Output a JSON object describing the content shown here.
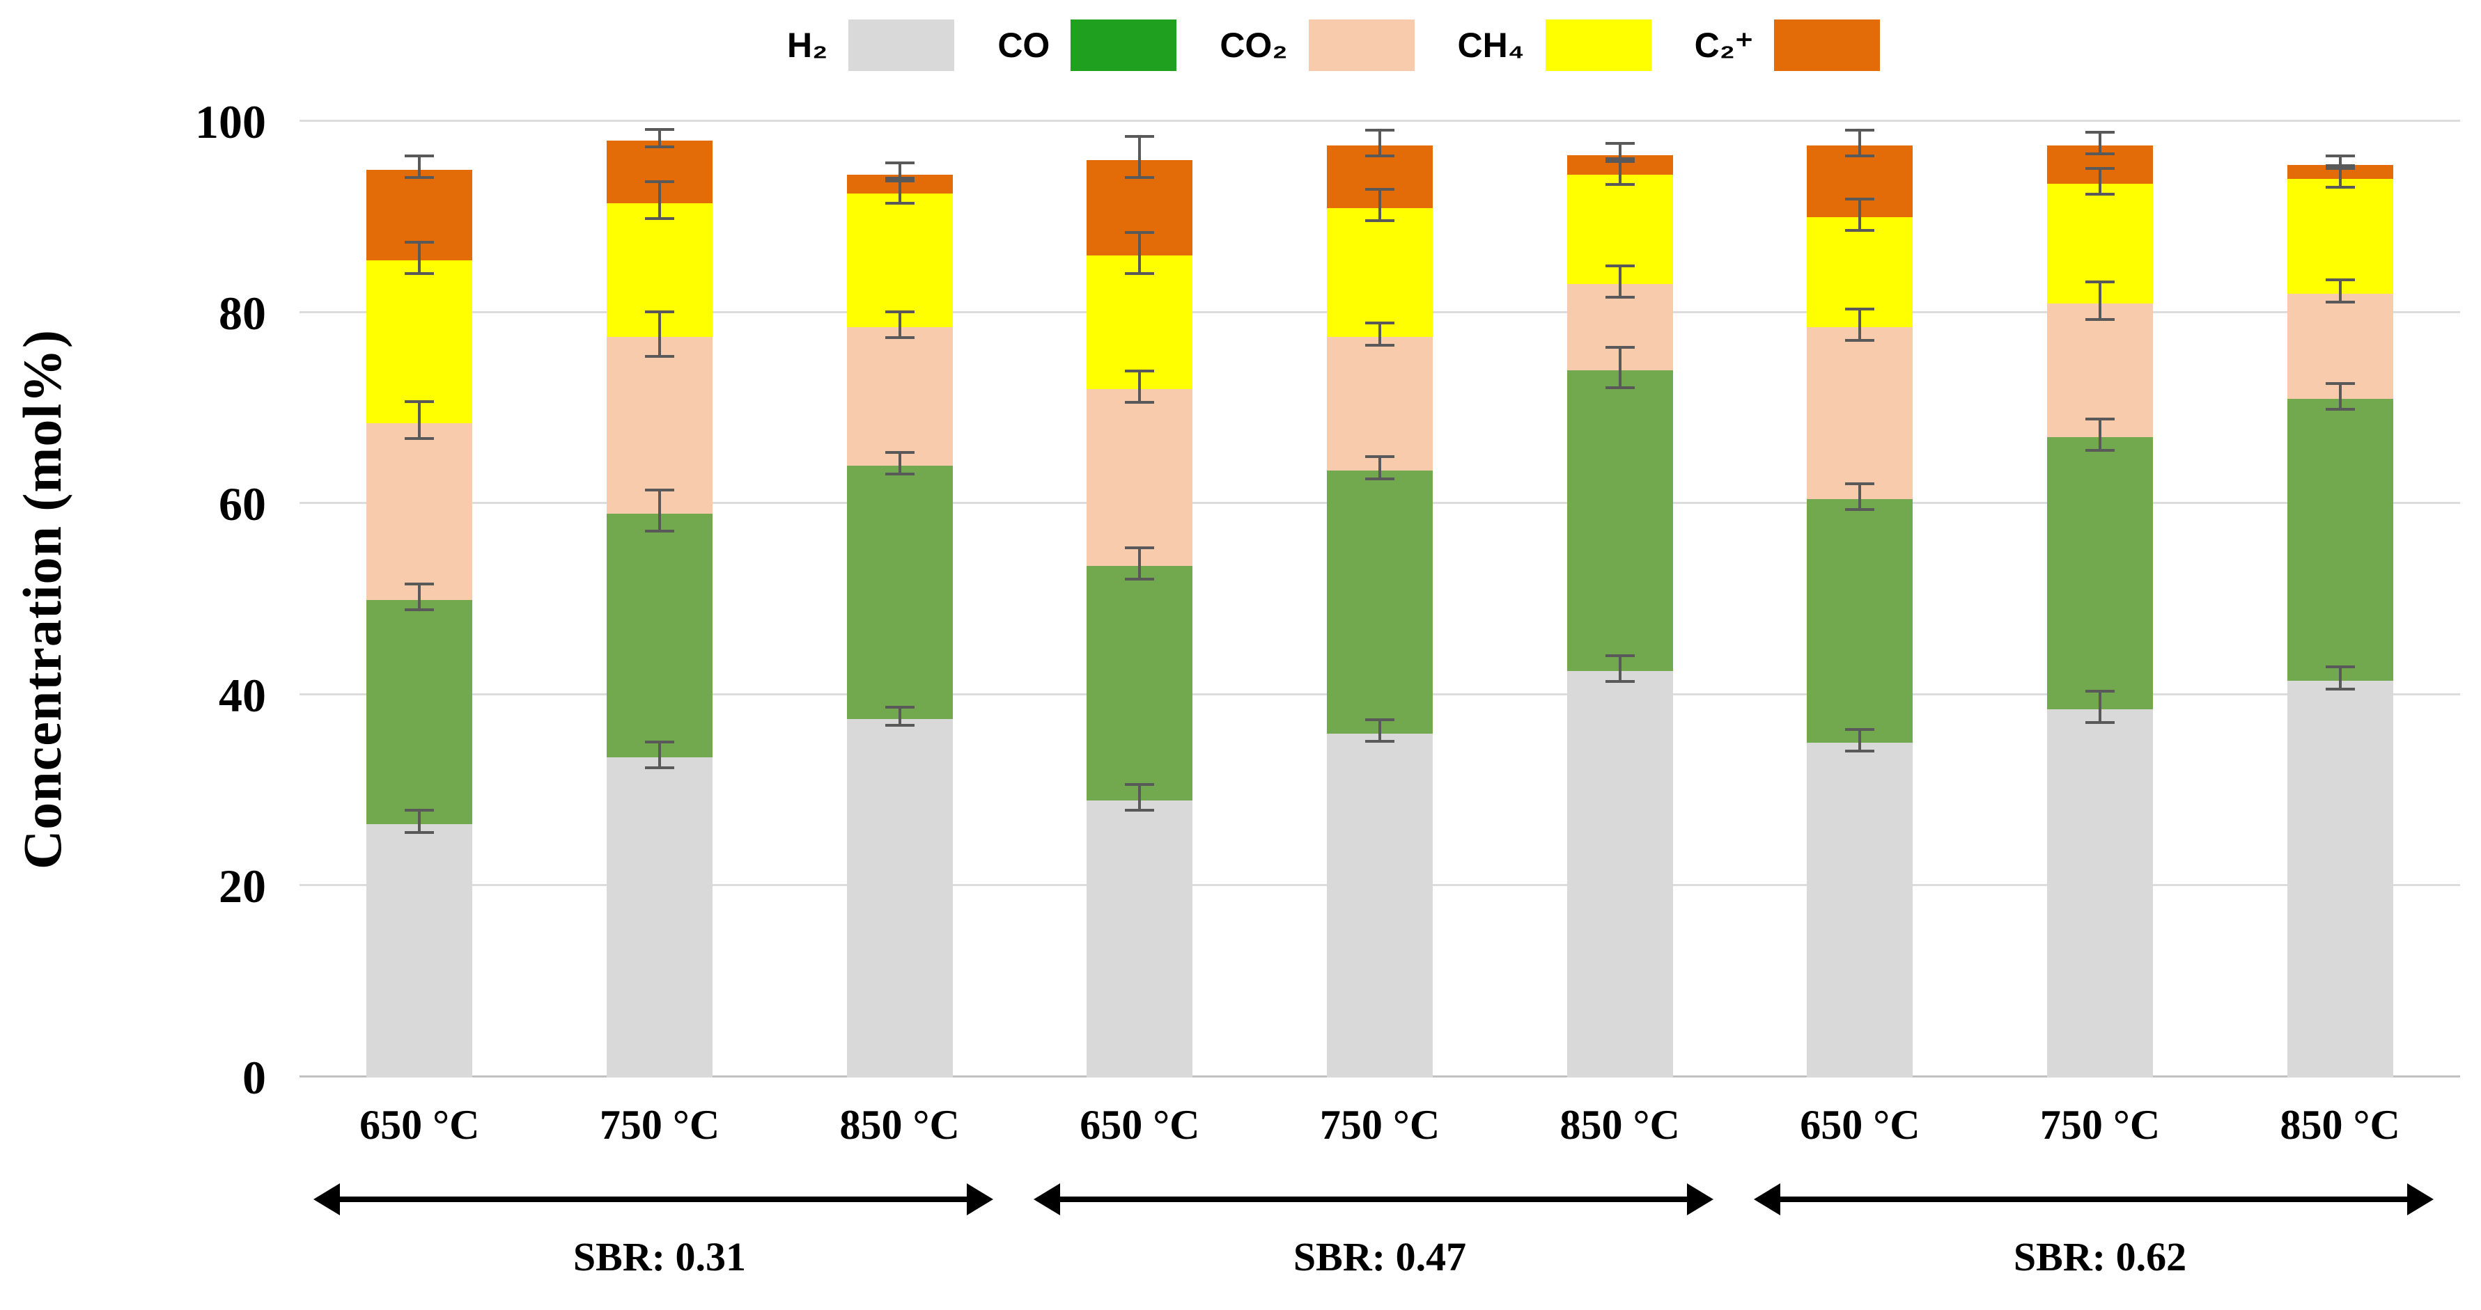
{
  "chart_data": {
    "type": "bar",
    "subtype": "stacked",
    "title": "",
    "ylabel": "Concentration (mol%)",
    "ylim": [
      0,
      100
    ],
    "yticks": [
      0,
      20,
      40,
      60,
      80,
      100
    ],
    "grid": "horizontal",
    "legend_position": "top",
    "categories": [
      "650 °C",
      "750 °C",
      "850 °C",
      "650 °C",
      "750 °C",
      "850 °C",
      "650 °C",
      "750 °C",
      "850 °C"
    ],
    "groups": [
      {
        "label": "SBR: 0.31",
        "start": 0,
        "end": 2
      },
      {
        "label": "SBR: 0.47",
        "start": 3,
        "end": 5
      },
      {
        "label": "SBR: 0.62",
        "start": 6,
        "end": 8
      }
    ],
    "series": [
      {
        "name": "H2",
        "display": "H₂",
        "color": "#d9d9d9",
        "legend_color": "#d9d9d9",
        "values": [
          26.5,
          33.5,
          37.5,
          29.0,
          36.0,
          42.5,
          35.0,
          38.5,
          41.5
        ],
        "errors": [
          1.0,
          1.2,
          0.8,
          1.2,
          1.0,
          1.2,
          1.0,
          1.5,
          1.0
        ]
      },
      {
        "name": "CO",
        "display": "CO",
        "color": "#72a94f",
        "legend_color": "#1fa11f",
        "values": [
          23.5,
          25.5,
          26.5,
          24.5,
          27.5,
          31.5,
          25.5,
          28.5,
          29.5
        ],
        "errors": [
          1.2,
          2.0,
          1.0,
          1.5,
          1.0,
          2.0,
          1.2,
          1.5,
          1.2
        ]
      },
      {
        "name": "CO2",
        "display": "CO₂",
        "color": "#f8cbad",
        "legend_color": "#f8cbad",
        "values": [
          18.5,
          18.5,
          14.5,
          18.5,
          14.0,
          9.0,
          18.0,
          14.0,
          11.0
        ],
        "errors": [
          1.8,
          2.2,
          1.2,
          1.5,
          1.0,
          1.5,
          1.5,
          1.8,
          1.0
        ]
      },
      {
        "name": "CH4",
        "display": "CH₄",
        "color": "#ffff00",
        "legend_color": "#ffff00",
        "values": [
          17.0,
          14.0,
          14.0,
          14.0,
          13.5,
          11.5,
          11.5,
          12.5,
          12.0
        ],
        "errors": [
          1.5,
          1.8,
          1.2,
          2.0,
          1.5,
          1.2,
          1.5,
          1.2,
          1.0
        ]
      },
      {
        "name": "C2plus",
        "display": "C₂⁺",
        "color": "#e36c09",
        "legend_color": "#e36c09",
        "values": [
          9.5,
          6.5,
          2.0,
          10.0,
          6.5,
          2.0,
          7.5,
          4.0,
          1.5
        ],
        "errors": [
          1.0,
          0.8,
          0.8,
          2.0,
          1.2,
          0.8,
          1.2,
          1.0,
          0.5
        ]
      }
    ]
  },
  "colors": {
    "error_bar": "#595959",
    "gridline": "#dcdcdc",
    "arrow": "#000000",
    "background": "#ffffff"
  }
}
